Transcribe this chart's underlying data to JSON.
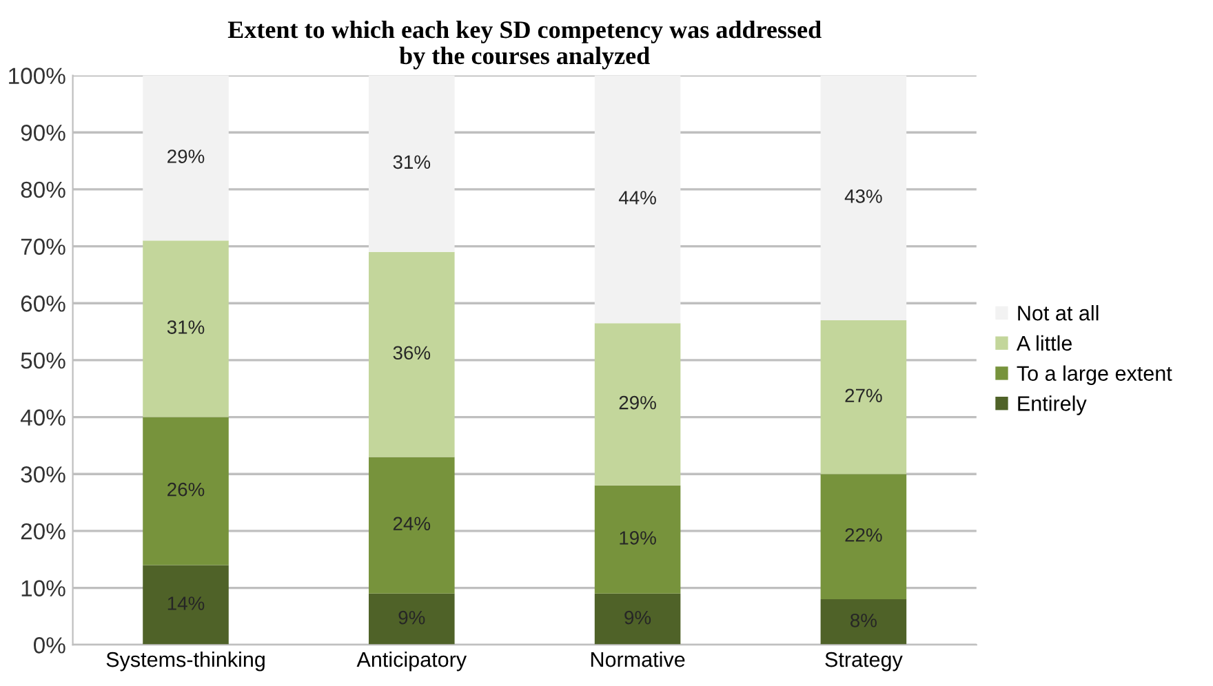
{
  "chart_data": {
    "type": "bar",
    "stacked": true,
    "title": "Extent to which each key SD competency was addressed\nby the courses analyzed",
    "categories": [
      "Systems-thinking",
      "Anticipatory",
      "Normative",
      "Strategy"
    ],
    "series": [
      {
        "name": "Entirely",
        "color": "#4f6228",
        "values": [
          14,
          9,
          9,
          8
        ],
        "value_labels": [
          "14%",
          "9%",
          "9%",
          "8%"
        ]
      },
      {
        "name": "To a large extent",
        "color": "#77933c",
        "values": [
          26,
          24,
          19,
          22
        ],
        "value_labels": [
          "26%",
          "24%",
          "19%",
          "22%"
        ]
      },
      {
        "name": "A little",
        "color": "#c3d69b",
        "values": [
          31,
          36,
          28.5,
          27
        ],
        "value_labels": [
          "31%",
          "36%",
          "29%",
          "27%"
        ]
      },
      {
        "name": "Not at all",
        "color": "#f2f2f2",
        "values": [
          29,
          31,
          43.5,
          43
        ],
        "value_labels": [
          "29%",
          "31%",
          "44%",
          "43%"
        ]
      }
    ],
    "ylim": [
      0,
      100
    ],
    "yticks": [
      {
        "value": 0,
        "label": "0%"
      },
      {
        "value": 10,
        "label": "10%"
      },
      {
        "value": 20,
        "label": "20%"
      },
      {
        "value": 30,
        "label": "30%"
      },
      {
        "value": 40,
        "label": "40%"
      },
      {
        "value": 50,
        "label": "50%"
      },
      {
        "value": 60,
        "label": "60%"
      },
      {
        "value": 70,
        "label": "70%"
      },
      {
        "value": 80,
        "label": "80%"
      },
      {
        "value": 90,
        "label": "90%"
      },
      {
        "value": 100,
        "label": "100%"
      }
    ],
    "grid": "y",
    "legend": "right"
  }
}
